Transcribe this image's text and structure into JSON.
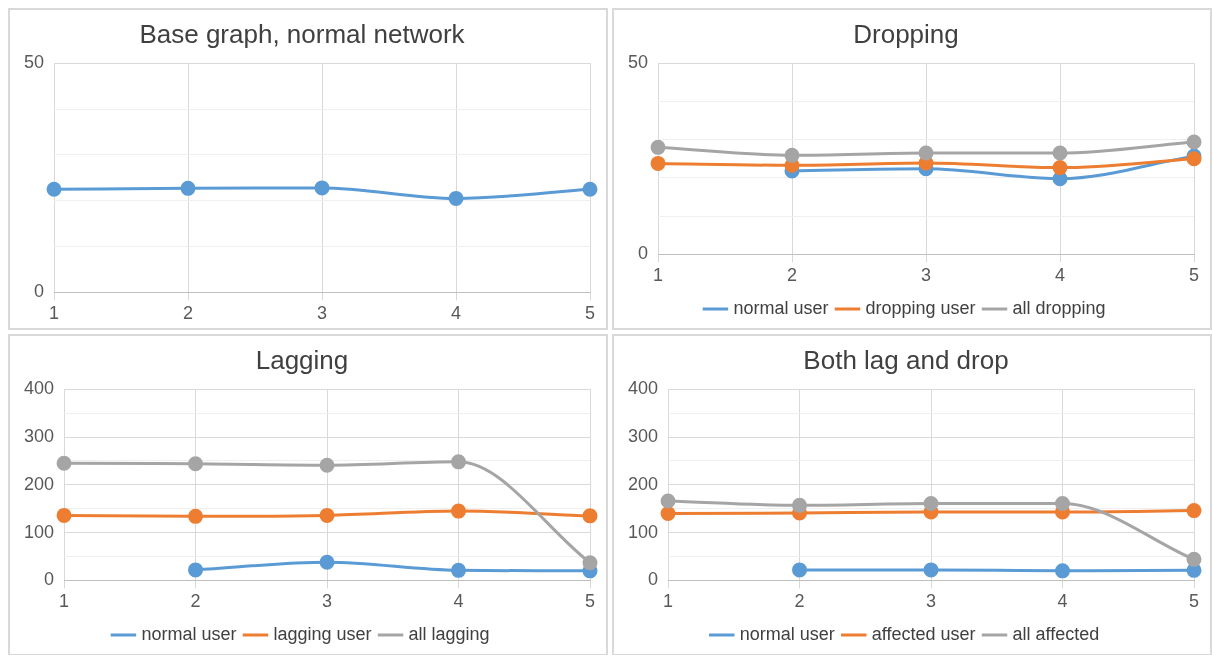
{
  "chart_data": [
    {
      "type": "line",
      "title": "Base graph, normal network",
      "categories": [
        "1",
        "2",
        "3",
        "4",
        "5"
      ],
      "series": [
        {
          "color": "#5b9bd5",
          "values": [
            22.5,
            22.7,
            22.8,
            20.5,
            22.5
          ]
        }
      ],
      "ylim": [
        0,
        50
      ],
      "yticks": [
        0,
        {
          "value": 10,
          "label": null
        },
        {
          "value": 20,
          "label": null
        },
        {
          "value": 30,
          "label": null
        },
        {
          "value": 40,
          "label": null
        },
        50
      ],
      "grid": true,
      "legend": false,
      "marker": "circle",
      "line_style": "solid"
    },
    {
      "type": "line",
      "title": "Dropping",
      "categories": [
        "1",
        "2",
        "3",
        "4",
        "5"
      ],
      "series": [
        {
          "name": "normal user",
          "color": "#5b9bd5",
          "values": [
            null,
            21.8,
            22.4,
            19.8,
            25.7
          ]
        },
        {
          "name": "dropping user",
          "color": "#ed7d31",
          "values": [
            23.8,
            23.3,
            23.9,
            22.7,
            25
          ]
        },
        {
          "name": "all dropping",
          "color": "#a5a5a5",
          "values": [
            28,
            25.9,
            26.5,
            26.5,
            29.4
          ]
        }
      ],
      "ylim": [
        0,
        50
      ],
      "yticks": [
        0,
        {
          "value": 10,
          "label": null
        },
        {
          "value": 20,
          "label": null
        },
        {
          "value": 30,
          "label": null
        },
        {
          "value": 40,
          "label": null
        },
        50
      ],
      "grid": true,
      "legend": "bottom",
      "marker": "circle",
      "line_style": "solid"
    },
    {
      "type": "line",
      "title": "Lagging",
      "categories": [
        "1",
        "2",
        "3",
        "4",
        "5"
      ],
      "series": [
        {
          "name": "normal user",
          "color": "#5b9bd5",
          "values": [
            null,
            22,
            38,
            21,
            20
          ]
        },
        {
          "name": "lagging user",
          "color": "#ed7d31",
          "values": [
            136,
            134,
            136,
            145,
            135
          ]
        },
        {
          "name": "all lagging",
          "color": "#a5a5a5",
          "values": [
            245,
            244,
            241,
            248,
            37
          ]
        }
      ],
      "ylim": [
        0,
        400
      ],
      "yticks": [
        0,
        {
          "value": 50,
          "label": null
        },
        100,
        {
          "value": 150,
          "label": null
        },
        200,
        {
          "value": 250,
          "label": null
        },
        300,
        {
          "value": 350,
          "label": null
        },
        400
      ],
      "grid": true,
      "legend": "bottom",
      "marker": "circle",
      "line_style": "solid"
    },
    {
      "type": "line",
      "title": "Both lag and drop",
      "categories": [
        "1",
        "2",
        "3",
        "4",
        "5"
      ],
      "series": [
        {
          "name": "normal user",
          "color": "#5b9bd5",
          "values": [
            null,
            22,
            22,
            20,
            21
          ]
        },
        {
          "name": "affected user",
          "color": "#ed7d31",
          "values": [
            140,
            141,
            143,
            143,
            146
          ]
        },
        {
          "name": "all affected",
          "color": "#a5a5a5",
          "values": [
            166,
            157,
            161,
            161,
            44
          ]
        }
      ],
      "ylim": [
        0,
        400
      ],
      "yticks": [
        0,
        {
          "value": 50,
          "label": null
        },
        100,
        {
          "value": 150,
          "label": null
        },
        200,
        {
          "value": 250,
          "label": null
        },
        300,
        {
          "value": 350,
          "label": null
        },
        400
      ],
      "grid": true,
      "legend": "bottom",
      "marker": "circle",
      "line_style": "solid"
    }
  ]
}
